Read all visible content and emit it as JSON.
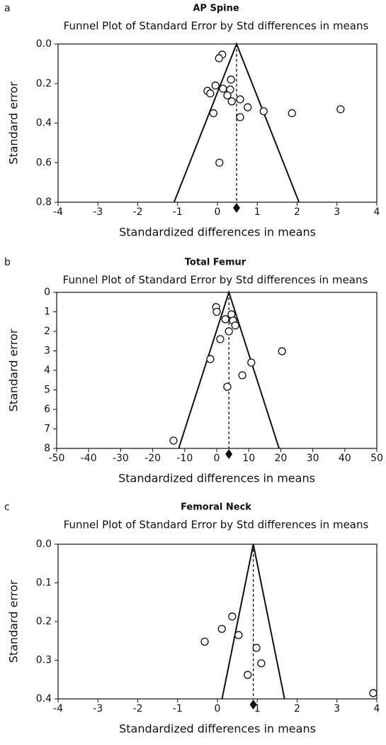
{
  "chart_data": [
    {
      "type": "funnel",
      "panel": "a",
      "title": "AP Spine",
      "subtitle": "Funnel Plot of Standard Error by Std differences in means",
      "xlabel": "Standardized differences in means",
      "ylabel": "Standard error",
      "xlim": [
        -4,
        4
      ],
      "ylim": [
        0,
        0.8
      ],
      "xticks": [
        -4,
        -3,
        -2,
        -1,
        0,
        1,
        2,
        3,
        4
      ],
      "yticks": [
        {
          "value": 0,
          "label": "0.0"
        },
        0.2,
        0.4,
        0.6,
        0.8
      ],
      "pooled": 0.48,
      "x": [
        0.12,
        0.04,
        0.34,
        -0.05,
        0.32,
        0.14,
        -0.25,
        -0.18,
        0.25,
        0.57,
        0.36,
        0.76,
        1.16,
        1.87,
        3.09,
        -0.1,
        0.57,
        0.05
      ],
      "y": [
        0.054,
        0.072,
        0.18,
        0.21,
        0.23,
        0.226,
        0.237,
        0.25,
        0.26,
        0.28,
        0.29,
        0.32,
        0.34,
        0.35,
        0.33,
        0.35,
        0.37,
        0.6
      ]
    },
    {
      "type": "funnel",
      "panel": "b",
      "title": "Total Femur",
      "subtitle": "Funnel Plot of Standard Error by Std differences in means",
      "xlabel": "Standardized differences in means",
      "ylabel": "Standard error",
      "xlim": [
        -50,
        50
      ],
      "ylim": [
        0,
        8
      ],
      "xticks": [
        -50,
        -40,
        -30,
        -20,
        -10,
        0,
        10,
        20,
        30,
        40,
        50
      ],
      "yticks": [
        0,
        1,
        2,
        3,
        4,
        5,
        6,
        7,
        8
      ],
      "pooled": 3.8,
      "x": [
        -0.2,
        0,
        4.6,
        2.7,
        5.1,
        5.8,
        3.8,
        1.1,
        20.4,
        -2,
        10.8,
        8,
        3.3,
        -13.5
      ],
      "y": [
        0.76,
        1.0,
        1.13,
        1.38,
        1.45,
        1.7,
        2.0,
        2.4,
        3.02,
        3.42,
        3.6,
        4.25,
        4.84,
        7.6
      ]
    },
    {
      "type": "funnel",
      "panel": "c",
      "title": "Femoral Neck",
      "subtitle": "Funnel Plot of Standard Error by Std differences in means",
      "xlabel": "Standardized differences in means",
      "ylabel": "Standard error",
      "xlim": [
        -4,
        4
      ],
      "ylim": [
        0,
        0.4
      ],
      "xticks": [
        -4,
        -3,
        -2,
        -1,
        0,
        1,
        2,
        3,
        4
      ],
      "yticks": [
        {
          "value": 0,
          "label": "0.0"
        },
        0.1,
        0.2,
        0.3,
        0.4
      ],
      "pooled": 0.9,
      "x": [
        0.37,
        0.11,
        -0.32,
        0.53,
        0.98,
        1.1,
        0.76,
        3.91
      ],
      "y": [
        0.187,
        0.219,
        0.252,
        0.235,
        0.268,
        0.308,
        0.338,
        0.385
      ]
    }
  ]
}
